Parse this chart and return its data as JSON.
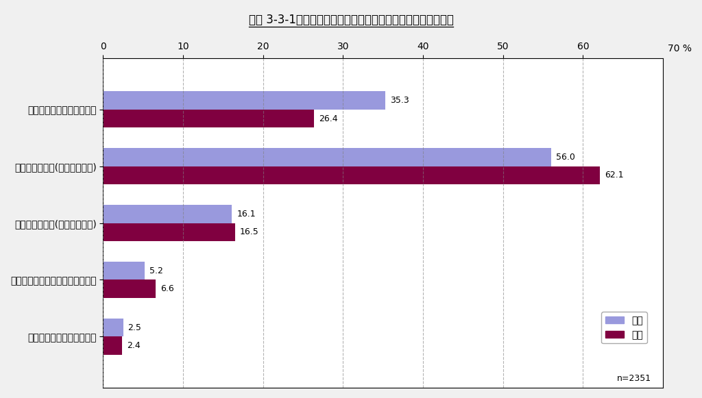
{
  "title": "図表 3-3-1　ブログ運営での匿名／実名　（性別、複数回答）",
  "categories": [
    "ブログは匿名で書いている",
    "ハンドルネーム(実名配慮あり)",
    "ハンドルネーム(実名配慮なし)",
    "実名を推測可能なハンドルネーム",
    "ブログは実名で書いている"
  ],
  "male_values": [
    35.3,
    56.0,
    16.1,
    5.2,
    2.5
  ],
  "female_values": [
    26.4,
    62.1,
    16.5,
    6.6,
    2.4
  ],
  "male_color": "#9999dd",
  "female_color": "#800040",
  "xlim": [
    0,
    70
  ],
  "xticks": [
    0,
    10,
    20,
    30,
    40,
    50,
    60
  ],
  "xlabel_suffix": "70 %",
  "male_label": "男性",
  "female_label": "女性",
  "n_label": "n=2351",
  "bar_height": 0.32,
  "background_color": "#f0f0f0",
  "plot_bg_color": "#ffffff"
}
